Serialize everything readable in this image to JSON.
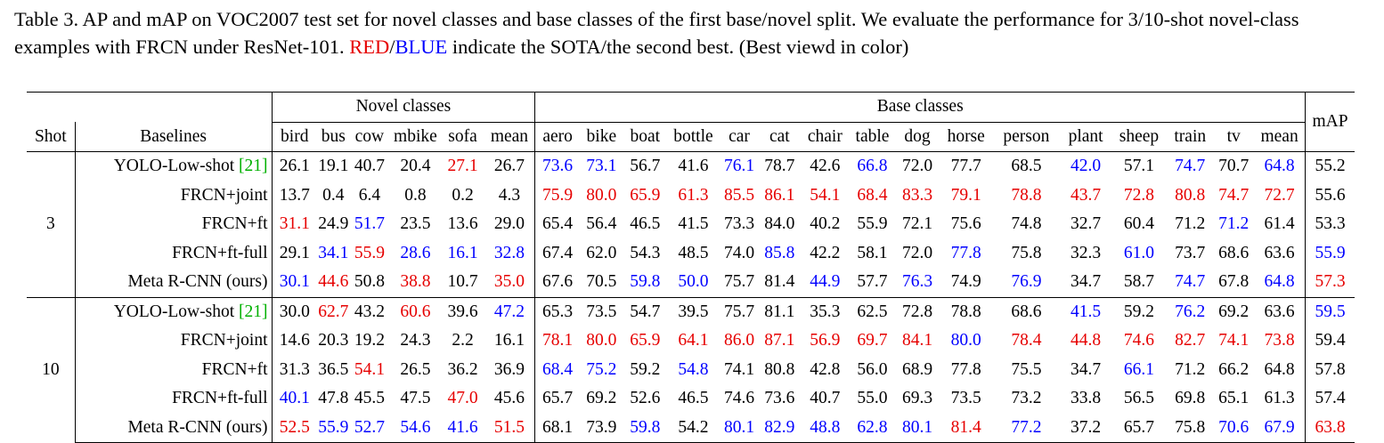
{
  "caption": {
    "part1": "Table 3. AP and mAP on VOC2007 test set for novel classes and base classes of the first base/novel split. We evaluate the performance for 3/10-shot novel-class examples with FRCN under ResNet-101. ",
    "red_word": "RED",
    "slash": "/",
    "blue_word": "BLUE",
    "part2": " indicate the SOTA/the second best. (Best viewd in color)"
  },
  "header": {
    "shot": "Shot",
    "baselines": "Baselines",
    "novel_group": "Novel classes",
    "base_group": "Base classes",
    "map": "mAP",
    "novel_cols": [
      "bird",
      "bus",
      "cow",
      "mbike",
      "sofa",
      "mean"
    ],
    "base_cols": [
      "aero",
      "bike",
      "boat",
      "bottle",
      "car",
      "cat",
      "chair",
      "table",
      "dog",
      "horse",
      "person",
      "plant",
      "sheep",
      "train",
      "tv",
      "mean"
    ]
  },
  "colors": {
    "red": "#e60000",
    "blue": "#0000ff",
    "cite": "#00b000"
  },
  "groups": [
    {
      "shot": "3",
      "rows": [
        {
          "name": "YOLO-Low-shot ",
          "cite": "[21]",
          "novel": [
            "26.1",
            "19.1",
            "40.7",
            "20.4",
            "27.1",
            "26.7"
          ],
          "novel_hl": [
            "",
            "",
            "",
            "",
            "r",
            ""
          ],
          "base": [
            "73.6",
            "73.1",
            "56.7",
            "41.6",
            "76.1",
            "78.7",
            "42.6",
            "66.8",
            "72.0",
            "77.7",
            "68.5",
            "42.0",
            "57.1",
            "74.7",
            "70.7",
            "64.8"
          ],
          "base_hl": [
            "b",
            "b",
            "",
            "",
            "b",
            "",
            "",
            "b",
            "",
            "",
            "",
            "b",
            "",
            "b",
            "",
            "b"
          ],
          "map": "55.2",
          "map_hl": ""
        },
        {
          "name": "FRCN+joint",
          "cite": "",
          "novel": [
            "13.7",
            "0.4",
            "6.4",
            "0.8",
            "0.2",
            "4.3"
          ],
          "novel_hl": [
            "",
            "",
            "",
            "",
            "",
            ""
          ],
          "base": [
            "75.9",
            "80.0",
            "65.9",
            "61.3",
            "85.5",
            "86.1",
            "54.1",
            "68.4",
            "83.3",
            "79.1",
            "78.8",
            "43.7",
            "72.8",
            "80.8",
            "74.7",
            "72.7"
          ],
          "base_hl": [
            "r",
            "r",
            "r",
            "r",
            "r",
            "r",
            "r",
            "r",
            "r",
            "r",
            "r",
            "r",
            "r",
            "r",
            "r",
            "r"
          ],
          "map": "55.6",
          "map_hl": ""
        },
        {
          "name": "FRCN+ft",
          "cite": "",
          "novel": [
            "31.1",
            "24.9",
            "51.7",
            "23.5",
            "13.6",
            "29.0"
          ],
          "novel_hl": [
            "r",
            "",
            "b",
            "",
            "",
            ""
          ],
          "base": [
            "65.4",
            "56.4",
            "46.5",
            "41.5",
            "73.3",
            "84.0",
            "40.2",
            "55.9",
            "72.1",
            "75.6",
            "74.8",
            "32.7",
            "60.4",
            "71.2",
            "71.2",
            "61.4"
          ],
          "base_hl": [
            "",
            "",
            "",
            "",
            "",
            "",
            "",
            "",
            "",
            "",
            "",
            "",
            "",
            "",
            "b",
            ""
          ],
          "map": "53.3",
          "map_hl": ""
        },
        {
          "name": "FRCN+ft-full",
          "cite": "",
          "novel": [
            "29.1",
            "34.1",
            "55.9",
            "28.6",
            "16.1",
            "32.8"
          ],
          "novel_hl": [
            "",
            "b",
            "r",
            "b",
            "b",
            "b"
          ],
          "base": [
            "67.4",
            "62.0",
            "54.3",
            "48.5",
            "74.0",
            "85.8",
            "42.2",
            "58.1",
            "72.0",
            "77.8",
            "75.8",
            "32.3",
            "61.0",
            "73.7",
            "68.6",
            "63.6"
          ],
          "base_hl": [
            "",
            "",
            "",
            "",
            "",
            "b",
            "",
            "",
            "",
            "b",
            "",
            "",
            "b",
            "",
            "",
            ""
          ],
          "map": "55.9",
          "map_hl": "b"
        },
        {
          "name": "Meta R-CNN (ours)",
          "cite": "",
          "novel": [
            "30.1",
            "44.6",
            "50.8",
            "38.8",
            "10.7",
            "35.0"
          ],
          "novel_hl": [
            "b",
            "r",
            "",
            "r",
            "",
            "r"
          ],
          "base": [
            "67.6",
            "70.5",
            "59.8",
            "50.0",
            "75.7",
            "81.4",
            "44.9",
            "57.7",
            "76.3",
            "74.9",
            "76.9",
            "34.7",
            "58.7",
            "74.7",
            "67.8",
            "64.8"
          ],
          "base_hl": [
            "",
            "",
            "b",
            "b",
            "",
            "",
            "b",
            "",
            "b",
            "",
            "b",
            "",
            "",
            "b",
            "",
            "b"
          ],
          "map": "57.3",
          "map_hl": "r"
        }
      ]
    },
    {
      "shot": "10",
      "rows": [
        {
          "name": "YOLO-Low-shot ",
          "cite": "[21]",
          "novel": [
            "30.0",
            "62.7",
            "43.2",
            "60.6",
            "39.6",
            "47.2"
          ],
          "novel_hl": [
            "",
            "r",
            "",
            "r",
            "",
            "b"
          ],
          "base": [
            "65.3",
            "73.5",
            "54.7",
            "39.5",
            "75.7",
            "81.1",
            "35.3",
            "62.5",
            "72.8",
            "78.8",
            "68.6",
            "41.5",
            "59.2",
            "76.2",
            "69.2",
            "63.6"
          ],
          "base_hl": [
            "",
            "",
            "",
            "",
            "",
            "",
            "",
            "",
            "",
            "",
            "",
            "b",
            "",
            "b",
            "",
            ""
          ],
          "map": "59.5",
          "map_hl": "b"
        },
        {
          "name": "FRCN+joint",
          "cite": "",
          "novel": [
            "14.6",
            "20.3",
            "19.2",
            "24.3",
            "2.2",
            "16.1"
          ],
          "novel_hl": [
            "",
            "",
            "",
            "",
            "",
            ""
          ],
          "base": [
            "78.1",
            "80.0",
            "65.9",
            "64.1",
            "86.0",
            "87.1",
            "56.9",
            "69.7",
            "84.1",
            "80.0",
            "78.4",
            "44.8",
            "74.6",
            "82.7",
            "74.1",
            "73.8"
          ],
          "base_hl": [
            "r",
            "r",
            "r",
            "r",
            "r",
            "r",
            "r",
            "r",
            "r",
            "b",
            "r",
            "r",
            "r",
            "r",
            "r",
            "r"
          ],
          "map": "59.4",
          "map_hl": ""
        },
        {
          "name": "FRCN+ft",
          "cite": "",
          "novel": [
            "31.3",
            "36.5",
            "54.1",
            "26.5",
            "36.2",
            "36.9"
          ],
          "novel_hl": [
            "",
            "",
            "r",
            "",
            "",
            ""
          ],
          "base": [
            "68.4",
            "75.2",
            "59.2",
            "54.8",
            "74.1",
            "80.8",
            "42.8",
            "56.0",
            "68.9",
            "77.8",
            "75.5",
            "34.7",
            "66.1",
            "71.2",
            "66.2",
            "64.8"
          ],
          "base_hl": [
            "b",
            "b",
            "",
            "b",
            "",
            "",
            "",
            "",
            "",
            "",
            "",
            "",
            "b",
            "",
            "",
            ""
          ],
          "map": "57.8",
          "map_hl": ""
        },
        {
          "name": "FRCN+ft-full",
          "cite": "",
          "novel": [
            "40.1",
            "47.8",
            "45.5",
            "47.5",
            "47.0",
            "45.6"
          ],
          "novel_hl": [
            "b",
            "",
            "",
            "",
            "r",
            ""
          ],
          "base": [
            "65.7",
            "69.2",
            "52.6",
            "46.5",
            "74.6",
            "73.6",
            "40.7",
            "55.0",
            "69.3",
            "73.5",
            "73.2",
            "33.8",
            "56.5",
            "69.8",
            "65.1",
            "61.3"
          ],
          "base_hl": [
            "",
            "",
            "",
            "",
            "",
            "",
            "",
            "",
            "",
            "",
            "",
            "",
            "",
            "",
            "",
            ""
          ],
          "map": "57.4",
          "map_hl": ""
        },
        {
          "name": "Meta R-CNN (ours)",
          "cite": "",
          "novel": [
            "52.5",
            "55.9",
            "52.7",
            "54.6",
            "41.6",
            "51.5"
          ],
          "novel_hl": [
            "r",
            "b",
            "b",
            "b",
            "b",
            "r"
          ],
          "base": [
            "68.1",
            "73.9",
            "59.8",
            "54.2",
            "80.1",
            "82.9",
            "48.8",
            "62.8",
            "80.1",
            "81.4",
            "77.2",
            "37.2",
            "65.7",
            "75.8",
            "70.6",
            "67.9"
          ],
          "base_hl": [
            "",
            "",
            "b",
            "",
            "b",
            "b",
            "b",
            "b",
            "b",
            "r",
            "b",
            "",
            "",
            "",
            "b",
            "b"
          ],
          "map": "63.8",
          "map_hl": "r"
        }
      ]
    }
  ]
}
